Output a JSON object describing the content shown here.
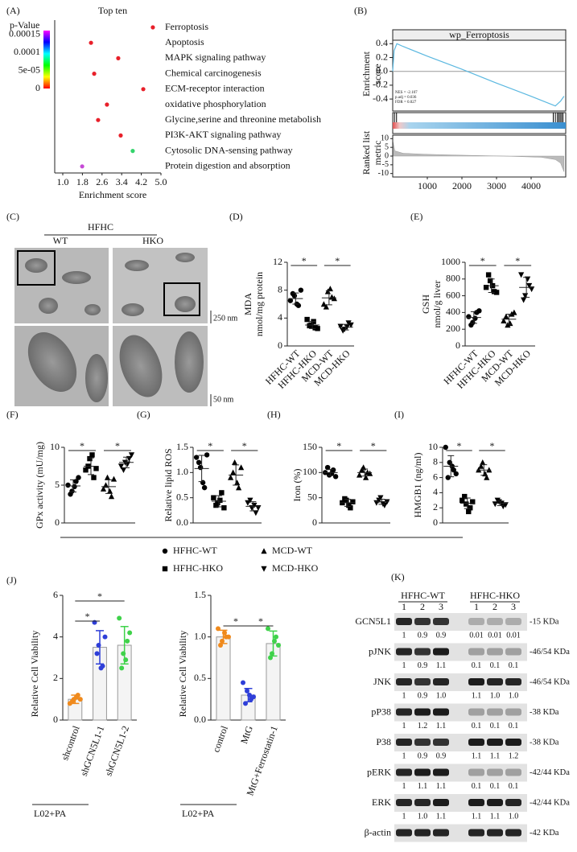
{
  "panels": [
    "(A)",
    "(B)",
    "(C)",
    "(D)",
    "(E)",
    "(F)",
    "(G)",
    "(H)",
    "(I)",
    "(J)",
    "(K)"
  ],
  "chart_data": [
    {
      "type": "dot",
      "title": "Top ten",
      "x_label": "Enrichment score",
      "categories": [
        "Ferroptosis",
        "Apoptosis",
        "MAPK signaling pathway",
        "Chemical carcinogenesis",
        "ECM-receptor interaction",
        "oxidative phosphorylation",
        "Glycine,serine and threonine metabolish",
        "PI3K-AKT signaling pathway",
        "Cytosolic DNA-sensing pathway",
        "Protein digestion and absorption"
      ],
      "values": [
        4.67,
        2.15,
        3.26,
        2.28,
        4.28,
        2.8,
        2.44,
        3.36,
        3.85,
        1.79
      ],
      "colors": [
        "#e8202a",
        "#e8202a",
        "#e8202a",
        "#e8202a",
        "#e8202a",
        "#e8202a",
        "#e8202a",
        "#e8202a",
        "#34d46c",
        "#c64ad6"
      ],
      "xlim": [
        1.0,
        5.0
      ],
      "xticks": [
        {
          "value": 1,
          "label": "1.0"
        },
        1.8,
        2.6,
        3.4,
        4.2,
        {
          "value": 5,
          "label": "5.0"
        }
      ],
      "colorbar": {
        "title": "p-Value",
        "lim": [
          0,
          0.00016
        ],
        "colors": [
          "#ff0000",
          "#ffff00",
          "#00ff00",
          "#00ffff",
          "#0000ff",
          "#ff00ff"
        ],
        "ticks": [
          0.00015,
          0.0001,
          {
            "value": 5e-05,
            "label": "5e-05"
          },
          0
        ]
      }
    },
    {
      "type": "gsea",
      "title": "wp_Ferroptosis",
      "y_label": [
        "Enrichment",
        "score"
      ],
      "y2_label": [
        "Ranked list",
        "metric"
      ],
      "annotations": [
        "NES = -2.107",
        "p.adj = 0.036",
        "FDR = 0.027"
      ],
      "x": [
        0,
        40,
        120,
        300,
        1000,
        2000,
        3000,
        4000,
        4700,
        4850,
        4950
      ],
      "values": [
        0,
        0.3,
        0.4,
        0.36,
        0.22,
        0.03,
        -0.17,
        -0.36,
        -0.5,
        -0.43,
        -0.36
      ],
      "color": "#5bb8e0",
      "xlim": [
        0,
        5000
      ],
      "xticks": [
        1000,
        2000,
        3000,
        4000
      ],
      "ylim": [
        -0.55,
        0.45
      ],
      "yticks": [
        0.4,
        0.2,
        {
          "value": 0,
          "label": "0.0"
        },
        -0.2,
        -0.4
      ],
      "hits": [
        50,
        110,
        4640,
        4700,
        4760,
        4800,
        4840,
        4880,
        4920
      ],
      "metric_x": [
        0,
        60,
        300,
        1000,
        2000,
        3200,
        4300,
        4700,
        4850,
        4950
      ],
      "metric_values": [
        9,
        3,
        1.6,
        1,
        0.5,
        0,
        -0.7,
        -2,
        -4,
        -9
      ],
      "y2lim": [
        -12,
        12
      ],
      "y2ticks": [
        10,
        5,
        0,
        -5,
        -10
      ]
    },
    {
      "type": "groupdot",
      "y_label": [
        "MDA",
        "nmol/mg protein"
      ],
      "categories": [
        "HFHC-WT",
        "HFHC-HKO",
        "MCD-WT",
        "MCD-HKO"
      ],
      "groups": [
        [
          6.5,
          7.2,
          5.8,
          7.5,
          6.0,
          8.0
        ],
        [
          3.8,
          3.0,
          2.6,
          2.9,
          3.5,
          2.5
        ],
        [
          6.0,
          7.8,
          7.0,
          5.6,
          8.2,
          6.8
        ],
        [
          2.8,
          2.4,
          3.3,
          2.2,
          2.7,
          3.0
        ]
      ],
      "means": [
        6.8,
        3.0,
        6.9,
        2.7
      ],
      "errors": [
        0.8,
        0.5,
        1.0,
        0.4
      ],
      "ylim": [
        0,
        12
      ],
      "yticks": [
        0,
        4,
        8,
        12
      ],
      "annotations": [
        "*",
        "*"
      ]
    },
    {
      "type": "groupdot",
      "y_label": [
        "GSH",
        "nmol/g liver"
      ],
      "categories": [
        "HFHC-WT",
        "HFHC-HKO",
        "MCD-WT",
        "MCD-HKO"
      ],
      "groups": [
        [
          350,
          280,
          400,
          250,
          330,
          420
        ],
        [
          700,
          780,
          650,
          850,
          720,
          640
        ],
        [
          300,
          250,
          380,
          350,
          270,
          400
        ],
        [
          850,
          600,
          720,
          550,
          800,
          680
        ]
      ],
      "means": [
        340,
        720,
        320,
        700
      ],
      "errors": [
        70,
        80,
        60,
        120
      ],
      "ylim": [
        0,
        1000
      ],
      "yticks": [
        0,
        200,
        400,
        600,
        800,
        1000
      ],
      "annotations": [
        "*",
        "*"
      ]
    },
    {
      "type": "groupdot",
      "y_label": "GPx activity (mU/mg)",
      "groups": [
        [
          5,
          4.2,
          5.5,
          3.8,
          4.8,
          6
        ],
        [
          7,
          8.5,
          6,
          7.5,
          9,
          7.2
        ],
        [
          4.5,
          6,
          3.5,
          5,
          4.2,
          5.8
        ],
        [
          7.5,
          8,
          8.5,
          7,
          7.8,
          9
        ]
      ],
      "means": [
        4.9,
        7.5,
        4.8,
        8.0
      ],
      "errors": [
        0.8,
        1.1,
        0.9,
        0.7
      ],
      "ylim": [
        0,
        10
      ],
      "yticks": [
        0,
        5,
        10
      ],
      "annotations": [
        "*",
        "*"
      ]
    },
    {
      "type": "groupdot",
      "y_label": "Relative lipid ROS",
      "groups": [
        [
          1.3,
          1.1,
          0.7,
          1.2,
          0.8,
          1.35
        ],
        [
          0.5,
          0.4,
          0.6,
          0.35,
          0.45,
          0.3
        ],
        [
          0.9,
          1.2,
          0.7,
          1.0,
          0.8,
          1.1
        ],
        [
          0.4,
          0.3,
          0.2,
          0.45,
          0.35,
          0.3
        ]
      ],
      "means": [
        1.08,
        0.43,
        0.95,
        0.33
      ],
      "errors": [
        0.26,
        0.11,
        0.2,
        0.09
      ],
      "ylim": [
        0,
        1.5
      ],
      "yticks": [
        {
          "value": 0,
          "label": "0.0"
        },
        0.5,
        {
          "value": 1,
          "label": "1.0"
        },
        1.5
      ],
      "annotations": [
        "*",
        "*"
      ]
    },
    {
      "type": "groupdot",
      "y_label": "Iron (%)",
      "groups": [
        [
          100,
          95,
          105,
          110,
          98,
          92
        ],
        [
          40,
          45,
          30,
          48,
          35,
          42
        ],
        [
          95,
          110,
          100,
          105,
          90,
          98
        ],
        [
          40,
          50,
          35,
          45,
          38,
          42
        ]
      ],
      "means": [
        100,
        40,
        100,
        42
      ],
      "errors": [
        6,
        7,
        7,
        5
      ],
      "ylim": [
        0,
        150
      ],
      "yticks": [
        0,
        50,
        100,
        150
      ],
      "annotations": [
        "*",
        "*"
      ]
    },
    {
      "type": "groupdot",
      "y_label": "HMGB1 (ng/ml)",
      "groups": [
        [
          10,
          8,
          7,
          6,
          7.5,
          6.5
        ],
        [
          3,
          2.5,
          2,
          3.5,
          1.5,
          2.8
        ],
        [
          7,
          8,
          6,
          7.5,
          6.5,
          7
        ],
        [
          2.5,
          2.8,
          2.2,
          3,
          2.6,
          2.4
        ]
      ],
      "means": [
        7.5,
        2.6,
        7.0,
        2.6
      ],
      "errors": [
        1.4,
        0.7,
        0.7,
        0.3
      ],
      "ylim": [
        0,
        10
      ],
      "yticks": [
        0,
        2,
        4,
        6,
        8,
        10
      ],
      "annotations": [
        "*",
        "*"
      ]
    },
    {
      "type": "bar",
      "y_label": "Relative Cell Viability",
      "categories": [
        "shcontrol",
        "shGCN5L1-1",
        "shGCN5L1-2"
      ],
      "values": [
        1.0,
        3.5,
        3.6
      ],
      "errors": [
        0.2,
        0.8,
        0.9
      ],
      "colors": [
        "#f08a1c",
        "#2f3fd8",
        "#3fd24a"
      ],
      "points": [
        [
          0.8,
          1.0,
          1.2,
          0.9,
          1.1,
          1.0
        ],
        [
          4.7,
          3.6,
          2.6,
          3.2,
          2.5,
          4.0
        ],
        [
          4.9,
          3.2,
          3.8,
          2.5,
          2.9,
          4.2
        ]
      ],
      "ylim": [
        0,
        6
      ],
      "yticks": [
        0,
        2,
        4,
        6
      ],
      "annotations": [
        "*",
        "*"
      ],
      "footnote": "L02+PA"
    },
    {
      "type": "bar",
      "y_label": "Relative Cell Viability",
      "categories": [
        "control",
        "MtG",
        "MtG+Ferrostatin-1"
      ],
      "values": [
        1.0,
        0.3,
        0.92
      ],
      "errors": [
        0.08,
        0.08,
        0.15
      ],
      "colors": [
        "#f08a1c",
        "#2f3fd8",
        "#3fd24a"
      ],
      "points": [
        [
          1.1,
          0.95,
          1.0,
          0.9,
          1.05,
          1.0
        ],
        [
          0.45,
          0.35,
          0.25,
          0.2,
          0.3,
          0.28
        ],
        [
          1.1,
          0.8,
          1.0,
          0.75,
          0.95,
          0.9
        ]
      ],
      "ylim": [
        0,
        1.5
      ],
      "yticks": [
        {
          "value": 0,
          "label": "0.0"
        },
        0.5,
        {
          "value": 1,
          "label": "1.0"
        },
        1.5
      ],
      "annotations": [
        "*",
        "*"
      ],
      "footnote": "L02+PA"
    }
  ],
  "em": {
    "group": "HFHC",
    "columns": [
      "WT",
      "HKO"
    ],
    "scales": [
      "250 nm",
      "50 nm"
    ]
  },
  "legend": {
    "items": [
      "HFHC-WT",
      "HFHC-HKO",
      "MCD-WT",
      "MCD-HKO"
    ]
  },
  "blot": {
    "groups": [
      "HFHC-WT",
      "HFHC-HKO"
    ],
    "lanes": [
      "1",
      "2",
      "3",
      "1",
      "2",
      "3"
    ],
    "rows": [
      {
        "name": "GCN5L1",
        "size": "-15 KDa",
        "values": [
          "1",
          "0.9",
          "0.9",
          "0.01",
          "0.01",
          "0.01"
        ]
      },
      {
        "name": "pJNK",
        "size": "-46/54 KDa",
        "values": [
          "1",
          "0.9",
          "1.1",
          "0.1",
          "0.1",
          "0.1"
        ]
      },
      {
        "name": "JNK",
        "size": "-46/54 KDa",
        "values": [
          "1",
          "0.9",
          "1.0",
          "1.1",
          "1.0",
          "1.0"
        ]
      },
      {
        "name": "pP38",
        "size": "-38 KDa",
        "values": [
          "1",
          "1.2",
          "1.1",
          "0.1",
          "0.1",
          "0.1"
        ]
      },
      {
        "name": "P38",
        "size": "-38 KDa",
        "values": [
          "1",
          "0.9",
          "0.9",
          "1.1",
          "1.1",
          "1.2"
        ]
      },
      {
        "name": "pERK",
        "size": "-42/44 KDa",
        "values": [
          "1",
          "1.1",
          "1.1",
          "0.1",
          "0.1",
          "0.1"
        ]
      },
      {
        "name": "ERK",
        "size": "-42/44 KDa",
        "values": [
          "1",
          "1.0",
          "1.1",
          "1.1",
          "1.1",
          "1.0"
        ]
      },
      {
        "name": "β-actin",
        "size": "-42 KDa"
      }
    ]
  }
}
